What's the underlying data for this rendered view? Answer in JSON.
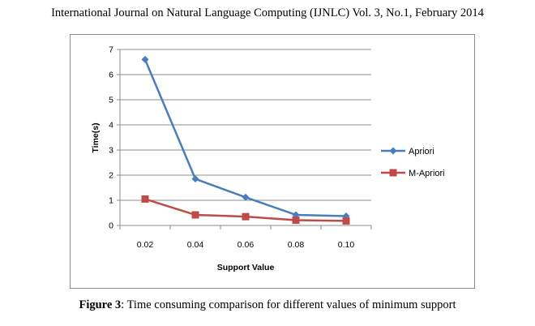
{
  "header": {
    "text": "International Journal on Natural Language Computing (IJNLC) Vol. 3, No.1, February 2014"
  },
  "caption": {
    "label": "Figure 3",
    "text": ": Time consuming comparison for different values of minimum support"
  },
  "chart_data": {
    "type": "line",
    "title": "",
    "xlabel": "Support Value",
    "ylabel": "Time(s)",
    "categories": [
      "0.02",
      "0.04",
      "0.06",
      "0.08",
      "0.10"
    ],
    "ylim": [
      0,
      7
    ],
    "yticks": [
      "0",
      "1",
      "2",
      "3",
      "4",
      "5",
      "6",
      "7"
    ],
    "grid": true,
    "legend_position": "right",
    "series": [
      {
        "name": "Apriori",
        "values": [
          6.6,
          1.85,
          1.12,
          0.42,
          0.37
        ],
        "color": "#4a7ebb",
        "marker": "diamond"
      },
      {
        "name": "M-Apriori",
        "values": [
          1.05,
          0.42,
          0.35,
          0.21,
          0.18
        ],
        "color": "#be4b48",
        "marker": "square"
      }
    ]
  }
}
